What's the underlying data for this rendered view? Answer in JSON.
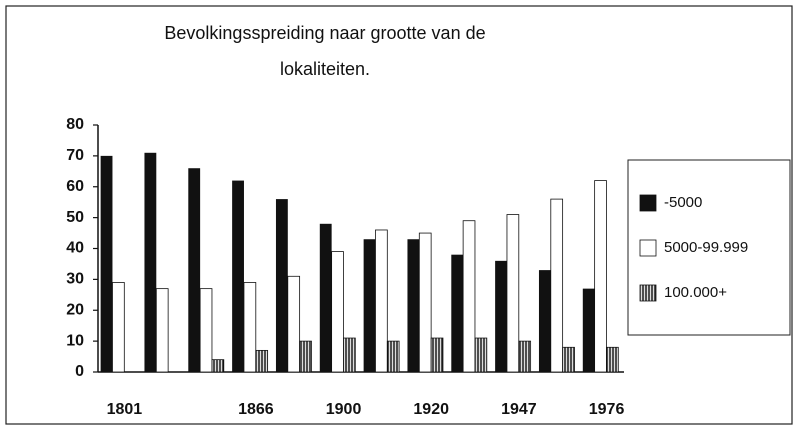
{
  "chart_data": {
    "type": "bar",
    "title": [
      "Bevolkingsspreiding naar grootte van de",
      "lokaliteiten."
    ],
    "categories": [
      "1801",
      null,
      null,
      "1866",
      null,
      "1900",
      null,
      "1920",
      null,
      "1947",
      null,
      "1976"
    ],
    "series": [
      {
        "name": "-5000",
        "color": "#111111",
        "values": [
          70,
          71,
          66,
          62,
          56,
          48,
          43,
          43,
          38,
          36,
          33,
          27
        ]
      },
      {
        "name": "5000-99.999",
        "color": "#ffffff",
        "values": [
          29,
          27,
          27,
          29,
          31,
          39,
          46,
          45,
          49,
          51,
          56,
          62
        ]
      },
      {
        "name": "100.000+",
        "color": "hatch",
        "values": [
          0,
          0,
          4,
          7,
          10,
          11,
          10,
          11,
          11,
          10,
          8,
          8
        ]
      }
    ],
    "ylim": [
      0,
      80
    ],
    "yticks": [
      0,
      10,
      20,
      30,
      40,
      50,
      60,
      70,
      80
    ],
    "legend": "right"
  }
}
